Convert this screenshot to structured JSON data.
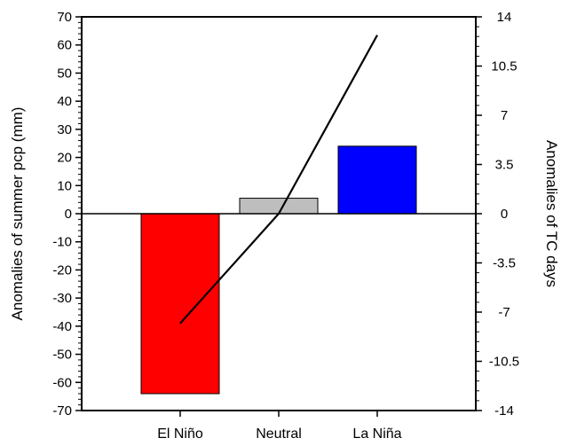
{
  "chart_data": {
    "type": "bar",
    "categories": [
      "El Niño",
      "Neutral",
      "La Niña"
    ],
    "series": [
      {
        "type": "bar",
        "axis": "left",
        "values": [
          -64,
          5.5,
          24
        ],
        "colors": [
          "#ff0000",
          "#bebebe",
          "#0000ff"
        ]
      },
      {
        "type": "line",
        "axis": "right",
        "values": [
          -7.8,
          0,
          12.7
        ],
        "color": "#000000"
      }
    ],
    "ylabel": "Anomalies of summer pcp (mm)",
    "ylabel_right": "Anomalies of TC days",
    "ylim": [
      -70,
      70
    ],
    "ylim_right": [
      -14,
      14
    ],
    "yticks": [
      "70",
      "60",
      "50",
      "40",
      "30",
      "20",
      "10",
      "0",
      "-10",
      "-20",
      "-30",
      "-40",
      "-50",
      "-60",
      "-70"
    ],
    "yticks_right": [
      "14",
      "10.5",
      "7",
      "3.5",
      "0",
      "-3.5",
      "-7",
      "-10.5",
      "-14"
    ],
    "grid": false
  }
}
